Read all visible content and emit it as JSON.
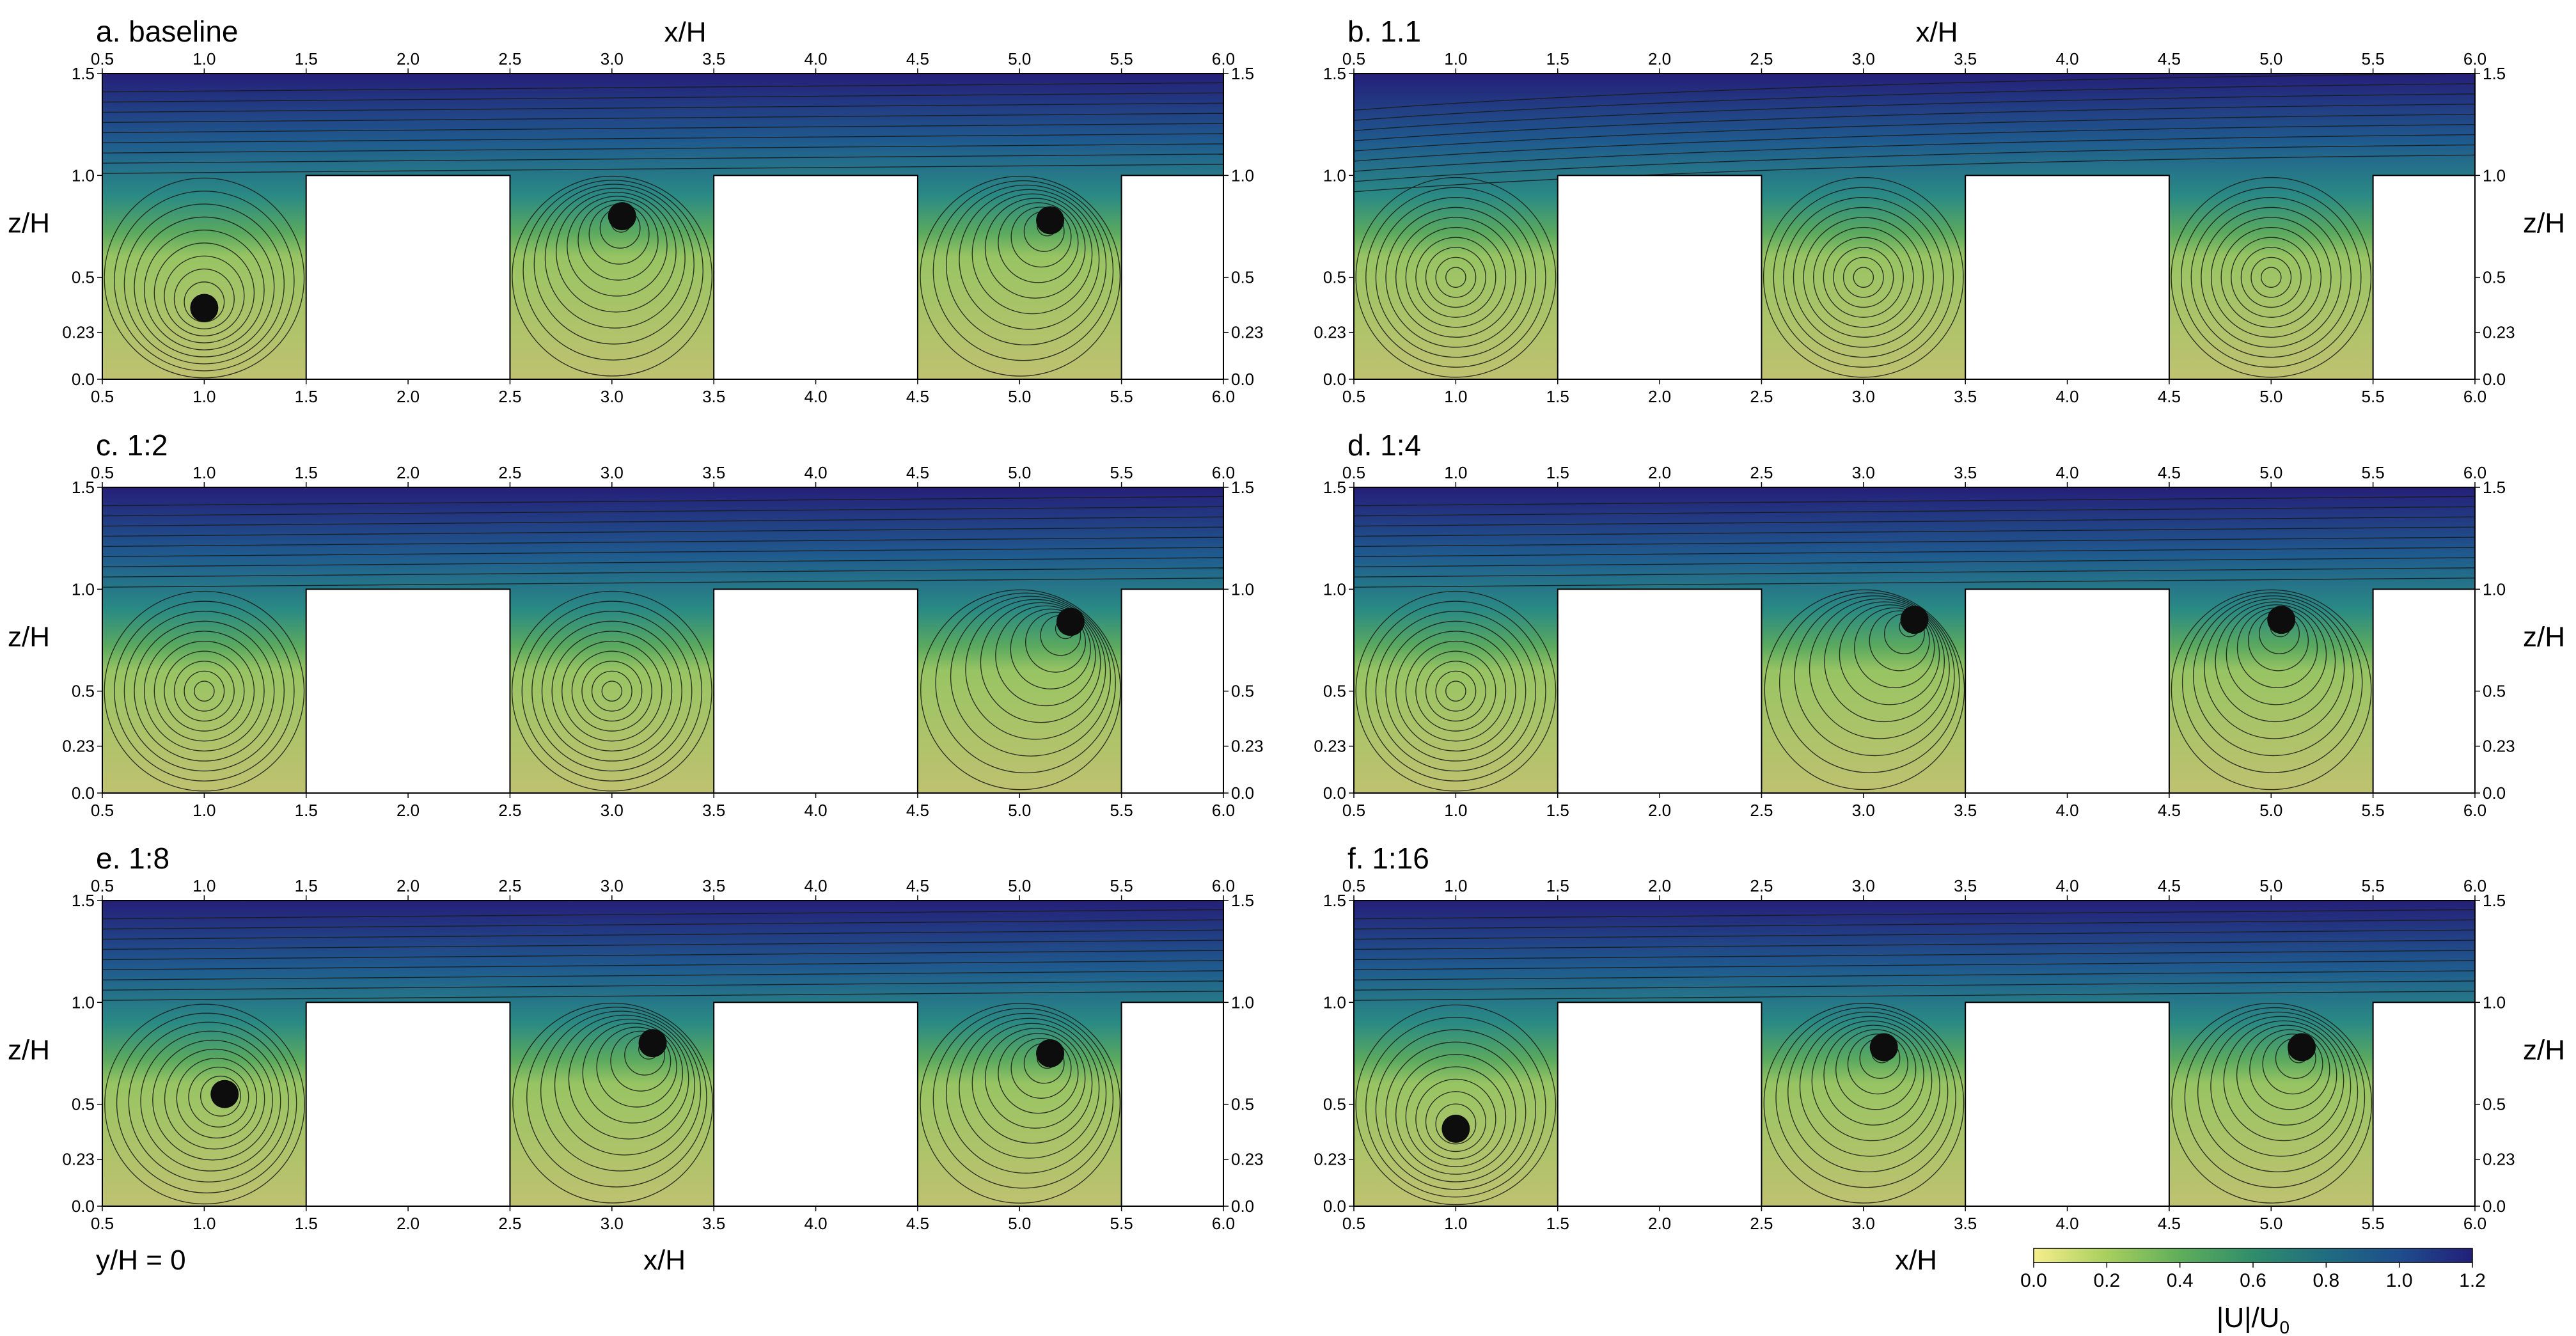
{
  "chart_data": {
    "type": "streamline-field",
    "x_axis_label": "x/H",
    "y_axis_label": "z/H",
    "xlim": [
      0.5,
      6.0
    ],
    "ylim": [
      0.0,
      1.5
    ],
    "x_ticks": [
      "0.5",
      "1.0",
      "1.5",
      "2.0",
      "2.5",
      "3.0",
      "3.5",
      "4.0",
      "4.5",
      "5.0",
      "5.5",
      "6.0"
    ],
    "x_tick_values": [
      0.5,
      1.0,
      1.5,
      2.0,
      2.5,
      3.0,
      3.5,
      4.0,
      4.5,
      5.0,
      5.5,
      6.0
    ],
    "y_ticks": [
      "0.0",
      "0.23",
      "0.5",
      "1.0",
      "1.5"
    ],
    "y_tick_values": [
      0.0,
      0.23,
      0.5,
      1.0,
      1.5
    ],
    "buildings": [
      [
        1.5,
        2.5
      ],
      [
        3.5,
        4.5
      ],
      [
        5.5,
        6.0
      ]
    ],
    "building_height": 1.0,
    "panels": [
      {
        "label": "a. baseline",
        "vortices": [
          {
            "x": 1.0,
            "z": 0.35
          },
          {
            "x": 3.05,
            "z": 0.8
          },
          {
            "x": 5.15,
            "z": 0.78
          }
        ]
      },
      {
        "label": "b. 1.1",
        "vortices": []
      },
      {
        "label": "c. 1:2",
        "vortices": [
          {
            "x": 5.25,
            "z": 0.84
          }
        ]
      },
      {
        "label": "d. 1:4",
        "vortices": [
          {
            "x": 3.25,
            "z": 0.85
          },
          {
            "x": 5.05,
            "z": 0.85
          }
        ]
      },
      {
        "label": "e. 1:8",
        "vortices": [
          {
            "x": 1.1,
            "z": 0.55
          },
          {
            "x": 3.2,
            "z": 0.8
          },
          {
            "x": 5.15,
            "z": 0.75
          }
        ]
      },
      {
        "label": "f. 1:16",
        "vortices": [
          {
            "x": 1.0,
            "z": 0.38
          },
          {
            "x": 3.1,
            "z": 0.78
          },
          {
            "x": 5.15,
            "z": 0.78
          }
        ]
      }
    ],
    "bottom_left_note": "y/H = 0",
    "colorbar": {
      "label": "|U|/U",
      "label_sub": "0",
      "range": [
        0.0,
        1.2
      ],
      "ticks": [
        "0.0",
        "0.2",
        "0.4",
        "0.6",
        "0.8",
        "1.0",
        "1.2"
      ],
      "tick_values": [
        0.0,
        0.2,
        0.4,
        0.6,
        0.8,
        1.0,
        1.2
      ],
      "stops": [
        "#f6ee8c",
        "#a8cf5e",
        "#5fae5a",
        "#2f8d6b",
        "#1f6d80",
        "#1e4d8c",
        "#231f7a"
      ]
    }
  }
}
